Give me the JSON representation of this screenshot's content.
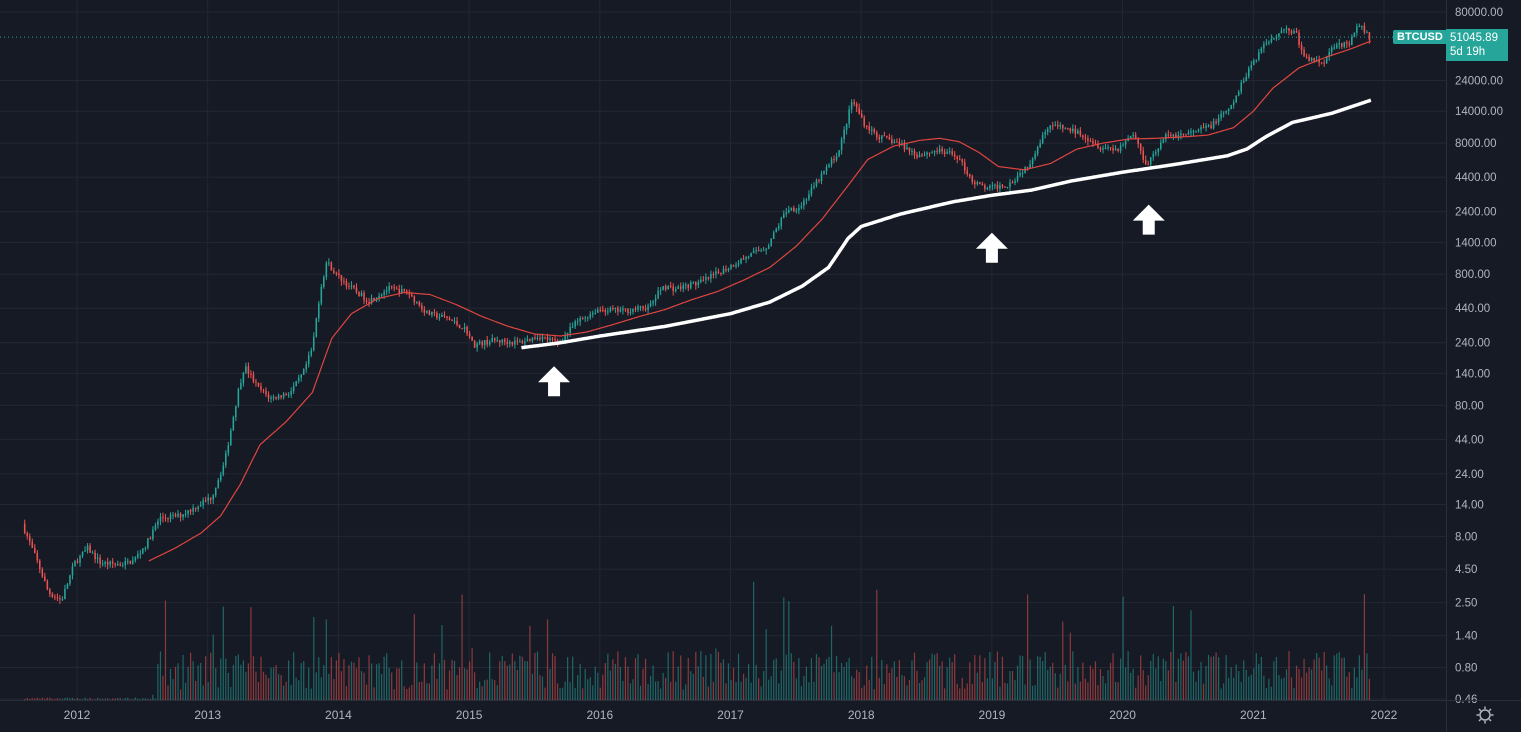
{
  "symbol": "BTCUSD",
  "last_price": "51045.89",
  "countdown": "5d 19h",
  "colors": {
    "background": "#161a25",
    "up": "#26a69a",
    "down": "#ef5350",
    "ma_red": "#e0453f",
    "ma_white": "#ffffff",
    "grid": "#232734",
    "text": "#b2b5be"
  },
  "chart_data": {
    "type": "candlestick",
    "title": "BTCUSD",
    "scale": "log",
    "x_ticks": [
      "2012",
      "2013",
      "2014",
      "2015",
      "2016",
      "2017",
      "2018",
      "2019",
      "2020",
      "2021",
      "2022"
    ],
    "y_ticks": [
      "80000.00",
      "24000.00",
      "14000.00",
      "8000.00",
      "4400.00",
      "2400.00",
      "1400.00",
      "800.00",
      "440.00",
      "240.00",
      "140.00",
      "80.00",
      "44.00",
      "24.00",
      "14.00",
      "8.00",
      "4.50",
      "2.50",
      "1.40",
      "0.80",
      "0.46"
    ],
    "x_range": [
      2011.6,
      2021.9
    ],
    "price_anchors": [
      [
        2011.6,
        10.0
      ],
      [
        2011.72,
        5.0
      ],
      [
        2011.8,
        3.0
      ],
      [
        2011.9,
        2.6
      ],
      [
        2012.0,
        5.0
      ],
      [
        2012.1,
        6.5
      ],
      [
        2012.2,
        5.0
      ],
      [
        2012.35,
        4.9
      ],
      [
        2012.45,
        5.2
      ],
      [
        2012.55,
        7.0
      ],
      [
        2012.65,
        11.0
      ],
      [
        2012.8,
        11.5
      ],
      [
        2012.9,
        13.0
      ],
      [
        2013.05,
        16.0
      ],
      [
        2013.15,
        30.0
      ],
      [
        2013.25,
        100.0
      ],
      [
        2013.3,
        160.0
      ],
      [
        2013.4,
        110.0
      ],
      [
        2013.5,
        90.0
      ],
      [
        2013.65,
        100.0
      ],
      [
        2013.75,
        140.0
      ],
      [
        2013.82,
        220.0
      ],
      [
        2013.88,
        600.0
      ],
      [
        2013.93,
        1000.0
      ],
      [
        2014.0,
        800.0
      ],
      [
        2014.1,
        650.0
      ],
      [
        2014.25,
        500.0
      ],
      [
        2014.4,
        620.0
      ],
      [
        2014.55,
        580.0
      ],
      [
        2014.7,
        400.0
      ],
      [
        2014.85,
        370.0
      ],
      [
        2015.0,
        300.0
      ],
      [
        2015.05,
        230.0
      ],
      [
        2015.2,
        250.0
      ],
      [
        2015.4,
        240.0
      ],
      [
        2015.55,
        270.0
      ],
      [
        2015.7,
        240.0
      ],
      [
        2015.85,
        350.0
      ],
      [
        2016.0,
        430.0
      ],
      [
        2016.2,
        420.0
      ],
      [
        2016.4,
        450.0
      ],
      [
        2016.5,
        650.0
      ],
      [
        2016.6,
        620.0
      ],
      [
        2016.8,
        700.0
      ],
      [
        2017.0,
        900.0
      ],
      [
        2017.15,
        1100.0
      ],
      [
        2017.3,
        1300.0
      ],
      [
        2017.45,
        2500.0
      ],
      [
        2017.55,
        2600.0
      ],
      [
        2017.7,
        4300.0
      ],
      [
        2017.85,
        7000.0
      ],
      [
        2017.95,
        17000.0
      ],
      [
        2018.05,
        11000.0
      ],
      [
        2018.15,
        9000.0
      ],
      [
        2018.3,
        8000.0
      ],
      [
        2018.45,
        6500.0
      ],
      [
        2018.6,
        7000.0
      ],
      [
        2018.75,
        6400.0
      ],
      [
        2018.88,
        4000.0
      ],
      [
        2018.98,
        3600.0
      ],
      [
        2019.15,
        3900.0
      ],
      [
        2019.3,
        5500.0
      ],
      [
        2019.45,
        11000.0
      ],
      [
        2019.55,
        10500.0
      ],
      [
        2019.7,
        9500.0
      ],
      [
        2019.85,
        7500.0
      ],
      [
        2019.98,
        7200.0
      ],
      [
        2020.1,
        9500.0
      ],
      [
        2020.2,
        5500.0
      ],
      [
        2020.35,
        9000.0
      ],
      [
        2020.55,
        9500.0
      ],
      [
        2020.7,
        11000.0
      ],
      [
        2020.85,
        15000.0
      ],
      [
        2020.98,
        29000.0
      ],
      [
        2021.1,
        45000.0
      ],
      [
        2021.25,
        60000.0
      ],
      [
        2021.35,
        55000.0
      ],
      [
        2021.4,
        36000.0
      ],
      [
        2021.55,
        33000.0
      ],
      [
        2021.65,
        47000.0
      ],
      [
        2021.75,
        44000.0
      ],
      [
        2021.82,
        63000.0
      ],
      [
        2021.87,
        58000.0
      ],
      [
        2021.9,
        51045.89
      ]
    ],
    "ma_red_anchors": [
      [
        2012.55,
        5.2
      ],
      [
        2012.75,
        6.5
      ],
      [
        2012.95,
        8.5
      ],
      [
        2013.1,
        11.5
      ],
      [
        2013.25,
        20.0
      ],
      [
        2013.4,
        40.0
      ],
      [
        2013.6,
        60.0
      ],
      [
        2013.8,
        100.0
      ],
      [
        2013.95,
        260.0
      ],
      [
        2014.1,
        400.0
      ],
      [
        2014.3,
        520.0
      ],
      [
        2014.5,
        580.0
      ],
      [
        2014.7,
        560.0
      ],
      [
        2014.9,
        470.0
      ],
      [
        2015.1,
        380.0
      ],
      [
        2015.3,
        320.0
      ],
      [
        2015.5,
        280.0
      ],
      [
        2015.7,
        270.0
      ],
      [
        2015.9,
        290.0
      ],
      [
        2016.1,
        330.0
      ],
      [
        2016.3,
        380.0
      ],
      [
        2016.5,
        430.0
      ],
      [
        2016.7,
        510.0
      ],
      [
        2016.9,
        590.0
      ],
      [
        2017.1,
        720.0
      ],
      [
        2017.3,
        900.0
      ],
      [
        2017.5,
        1300.0
      ],
      [
        2017.7,
        2100.0
      ],
      [
        2017.9,
        3800.0
      ],
      [
        2018.05,
        6000.0
      ],
      [
        2018.25,
        7600.0
      ],
      [
        2018.45,
        8400.0
      ],
      [
        2018.6,
        8700.0
      ],
      [
        2018.75,
        8200.0
      ],
      [
        2018.9,
        6800.0
      ],
      [
        2019.05,
        5300.0
      ],
      [
        2019.25,
        5000.0
      ],
      [
        2019.45,
        5600.0
      ],
      [
        2019.65,
        7200.0
      ],
      [
        2019.85,
        8000.0
      ],
      [
        2020.05,
        8600.0
      ],
      [
        2020.25,
        8700.0
      ],
      [
        2020.45,
        8900.0
      ],
      [
        2020.65,
        9200.0
      ],
      [
        2020.85,
        10500.0
      ],
      [
        2021.0,
        14000.0
      ],
      [
        2021.15,
        21000.0
      ],
      [
        2021.35,
        30000.0
      ],
      [
        2021.55,
        36000.0
      ],
      [
        2021.75,
        42000.0
      ],
      [
        2021.9,
        48000.0
      ]
    ],
    "ma_white_anchors": [
      [
        2015.4,
        220.0
      ],
      [
        2015.7,
        240.0
      ],
      [
        2016.0,
        270.0
      ],
      [
        2016.5,
        320.0
      ],
      [
        2017.0,
        400.0
      ],
      [
        2017.3,
        490.0
      ],
      [
        2017.55,
        650.0
      ],
      [
        2017.75,
        900.0
      ],
      [
        2017.9,
        1500.0
      ],
      [
        2018.0,
        1850.0
      ],
      [
        2018.3,
        2300.0
      ],
      [
        2018.7,
        2850.0
      ],
      [
        2019.0,
        3200.0
      ],
      [
        2019.3,
        3500.0
      ],
      [
        2019.6,
        4100.0
      ],
      [
        2020.0,
        4800.0
      ],
      [
        2020.4,
        5500.0
      ],
      [
        2020.8,
        6400.0
      ],
      [
        2020.95,
        7200.0
      ],
      [
        2021.1,
        9000.0
      ],
      [
        2021.3,
        11500.0
      ],
      [
        2021.6,
        13500.0
      ],
      [
        2021.9,
        17000.0
      ]
    ],
    "annotations": [
      {
        "type": "arrow-up",
        "x": 2015.65,
        "price": 120.0
      },
      {
        "type": "arrow-up",
        "x": 2019.0,
        "price": 1250.0
      },
      {
        "type": "arrow-up",
        "x": 2020.2,
        "price": 2050.0
      }
    ],
    "volume_axis": "volume histogram (relative)"
  }
}
